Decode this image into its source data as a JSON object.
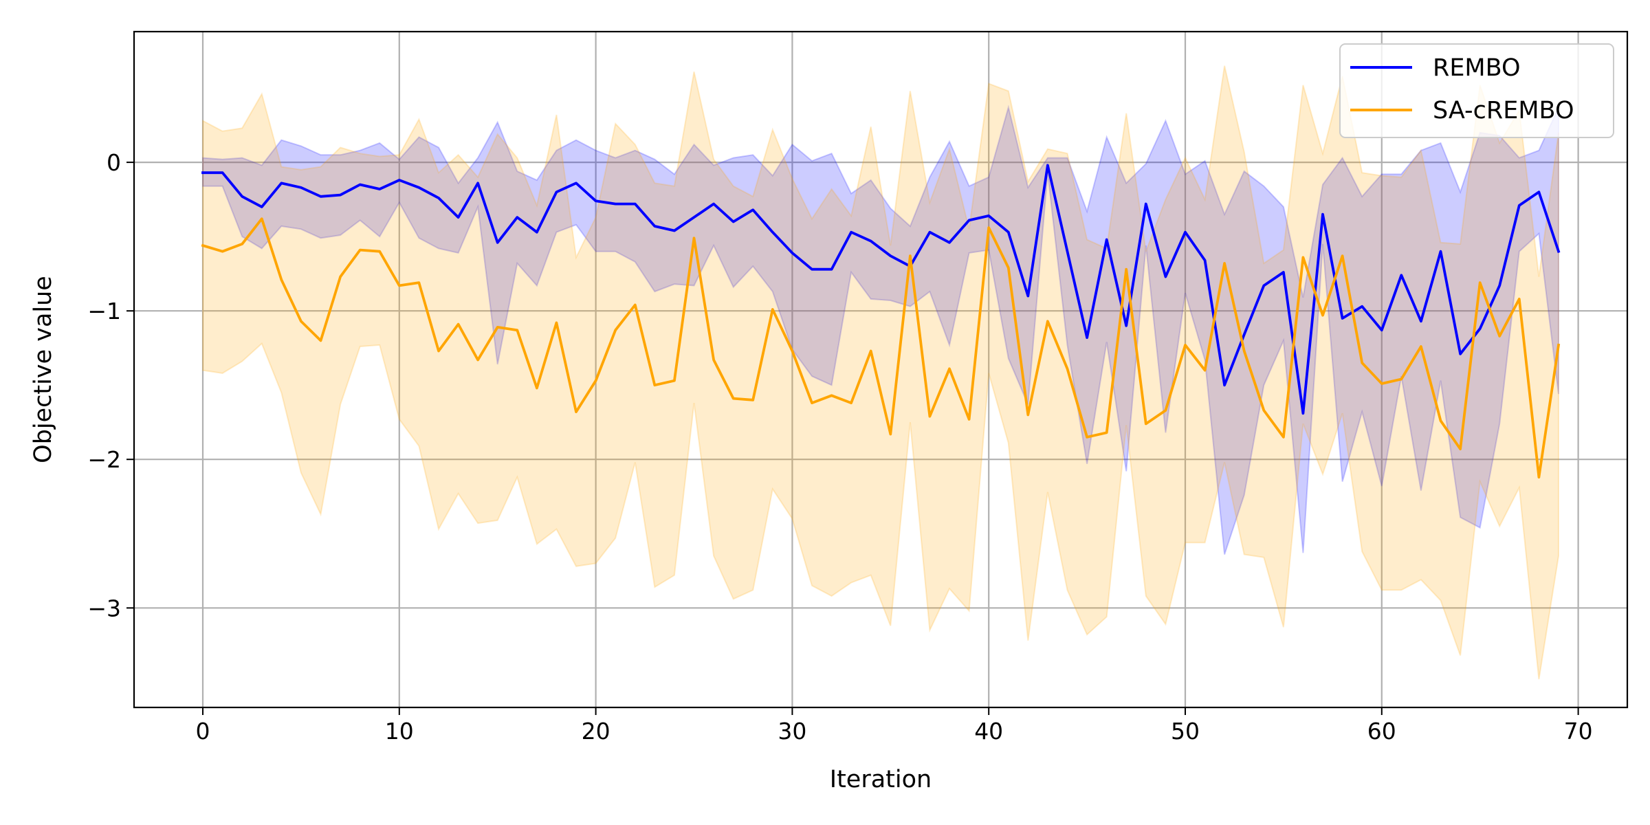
{
  "chart_data": {
    "type": "line",
    "xlabel": "Iteration",
    "ylabel": "Objective value",
    "xlim": [
      -3.5,
      72.5
    ],
    "ylim": [
      -3.67,
      0.88
    ],
    "xticks": [
      0,
      10,
      20,
      30,
      40,
      50,
      60,
      70
    ],
    "xtick_labels": [
      "0",
      "10",
      "20",
      "30",
      "40",
      "50",
      "60",
      "70"
    ],
    "yticks": [
      0,
      -1,
      -2,
      -3
    ],
    "ytick_labels": [
      "0",
      "−1",
      "−2",
      "−3"
    ],
    "grid": true,
    "legend_position": "top-right",
    "series": [
      {
        "name": "REMBO",
        "color": "#0000ff",
        "band_color": "#0000ff",
        "values": [
          -0.07,
          -0.07,
          -0.23,
          -0.3,
          -0.14,
          -0.17,
          -0.23,
          -0.22,
          -0.15,
          -0.18,
          -0.12,
          -0.17,
          -0.24,
          -0.37,
          -0.14,
          -0.54,
          -0.37,
          -0.47,
          -0.2,
          -0.14,
          -0.26,
          -0.28,
          -0.28,
          -0.43,
          -0.46,
          -0.37,
          -0.28,
          -0.4,
          -0.32,
          -0.47,
          -0.61,
          -0.72,
          -0.72,
          -0.47,
          -0.53,
          -0.63,
          -0.7,
          -0.47,
          -0.54,
          -0.39,
          -0.36,
          -0.47,
          -0.9,
          -0.02,
          -0.6,
          -1.18,
          -0.52,
          -1.1,
          -0.28,
          -0.77,
          -0.47,
          -0.66,
          -1.5,
          -1.16,
          -0.83,
          -0.74,
          -1.69,
          -0.35,
          -1.05,
          -0.97,
          -1.13,
          -0.76,
          -1.07,
          -0.6,
          -1.29,
          -1.12,
          -0.83,
          -0.29,
          -0.2,
          -0.6
        ],
        "upper": [
          0.03,
          0.02,
          0.03,
          -0.02,
          0.15,
          0.11,
          0.05,
          0.05,
          0.08,
          0.13,
          0.02,
          0.17,
          0.1,
          -0.14,
          0.03,
          0.27,
          -0.06,
          -0.12,
          0.08,
          0.15,
          0.08,
          0.03,
          0.08,
          0.02,
          -0.08,
          0.12,
          -0.02,
          0.03,
          0.05,
          -0.09,
          0.12,
          0.01,
          0.06,
          -0.21,
          -0.12,
          -0.31,
          -0.43,
          -0.1,
          0.14,
          -0.16,
          -0.1,
          0.37,
          -0.17,
          0.03,
          0.03,
          -0.33,
          0.17,
          -0.14,
          -0.01,
          0.28,
          -0.08,
          0.01,
          -0.35,
          -0.06,
          -0.16,
          -0.3,
          -0.91,
          -0.15,
          0.03,
          -0.23,
          -0.08,
          -0.08,
          0.08,
          0.13,
          -0.2,
          0.2,
          0.18,
          0.03,
          0.08,
          0.37
        ],
        "lower": [
          -0.16,
          -0.16,
          -0.5,
          -0.58,
          -0.43,
          -0.45,
          -0.51,
          -0.49,
          -0.39,
          -0.5,
          -0.27,
          -0.51,
          -0.58,
          -0.61,
          -0.3,
          -1.36,
          -0.68,
          -0.83,
          -0.47,
          -0.42,
          -0.6,
          -0.6,
          -0.67,
          -0.87,
          -0.82,
          -0.83,
          -0.56,
          -0.84,
          -0.7,
          -0.87,
          -1.26,
          -1.44,
          -1.5,
          -0.74,
          -0.92,
          -0.93,
          -0.97,
          -0.87,
          -1.23,
          -0.61,
          -0.59,
          -1.32,
          -1.63,
          -0.07,
          -1.23,
          -2.03,
          -1.21,
          -2.08,
          -0.56,
          -1.82,
          -0.88,
          -1.33,
          -2.64,
          -2.24,
          -1.5,
          -1.2,
          -2.63,
          -0.55,
          -2.15,
          -1.68,
          -2.18,
          -1.44,
          -2.21,
          -1.47,
          -2.39,
          -2.46,
          -1.76,
          -0.6,
          -0.48,
          -1.56
        ]
      },
      {
        "name": "SA-cREMBO",
        "color": "#ffa500",
        "band_color": "#ffa500",
        "values": [
          -0.56,
          -0.6,
          -0.55,
          -0.38,
          -0.79,
          -1.07,
          -1.2,
          -0.77,
          -0.59,
          -0.6,
          -0.83,
          -0.81,
          -1.27,
          -1.09,
          -1.33,
          -1.11,
          -1.13,
          -1.52,
          -1.08,
          -1.68,
          -1.47,
          -1.13,
          -0.96,
          -1.5,
          -1.47,
          -0.51,
          -1.33,
          -1.59,
          -1.6,
          -0.99,
          -1.27,
          -1.62,
          -1.57,
          -1.62,
          -1.27,
          -1.83,
          -0.63,
          -1.71,
          -1.39,
          -1.73,
          -0.44,
          -0.71,
          -1.7,
          -1.07,
          -1.39,
          -1.85,
          -1.82,
          -0.72,
          -1.76,
          -1.67,
          -1.23,
          -1.4,
          -0.68,
          -1.27,
          -1.67,
          -1.85,
          -0.64,
          -1.03,
          -0.63,
          -1.35,
          -1.49,
          -1.46,
          -1.24,
          -1.74,
          -1.93,
          -0.81,
          -1.17,
          -0.92,
          -2.12,
          -1.23
        ],
        "upper": [
          0.28,
          0.21,
          0.23,
          0.46,
          -0.03,
          -0.05,
          -0.03,
          0.1,
          0.06,
          0.04,
          0.05,
          0.29,
          -0.07,
          0.05,
          -0.1,
          0.19,
          0.03,
          -0.29,
          0.32,
          -0.64,
          -0.37,
          0.26,
          0.12,
          -0.14,
          -0.16,
          0.61,
          0.02,
          -0.16,
          -0.23,
          0.22,
          -0.11,
          -0.38,
          -0.18,
          -0.36,
          0.24,
          -0.56,
          0.48,
          -0.27,
          0.09,
          -0.45,
          0.53,
          0.48,
          -0.13,
          0.09,
          0.06,
          -0.52,
          -0.58,
          0.33,
          -0.6,
          -0.25,
          0.03,
          -0.25,
          0.65,
          0.07,
          -0.68,
          -0.59,
          0.52,
          0.06,
          0.58,
          -0.07,
          -0.09,
          -0.1,
          0.08,
          -0.54,
          -0.55,
          0.52,
          0.13,
          0.35,
          -0.77,
          0.2
        ],
        "lower": [
          -1.4,
          -1.42,
          -1.34,
          -1.22,
          -1.55,
          -2.09,
          -2.37,
          -1.63,
          -1.24,
          -1.23,
          -1.73,
          -1.91,
          -2.47,
          -2.23,
          -2.43,
          -2.41,
          -2.12,
          -2.57,
          -2.47,
          -2.72,
          -2.7,
          -2.53,
          -2.02,
          -2.86,
          -2.78,
          -1.62,
          -2.65,
          -2.94,
          -2.88,
          -2.2,
          -2.4,
          -2.85,
          -2.92,
          -2.83,
          -2.78,
          -3.12,
          -1.75,
          -3.15,
          -2.87,
          -3.02,
          -1.42,
          -1.89,
          -3.22,
          -2.22,
          -2.88,
          -3.18,
          -3.06,
          -1.77,
          -2.92,
          -3.11,
          -2.56,
          -2.56,
          -2.02,
          -2.64,
          -2.66,
          -3.13,
          -1.76,
          -2.1,
          -1.69,
          -2.62,
          -2.88,
          -2.88,
          -2.81,
          -2.95,
          -3.32,
          -2.15,
          -2.45,
          -2.19,
          -3.48,
          -2.65
        ]
      }
    ]
  }
}
